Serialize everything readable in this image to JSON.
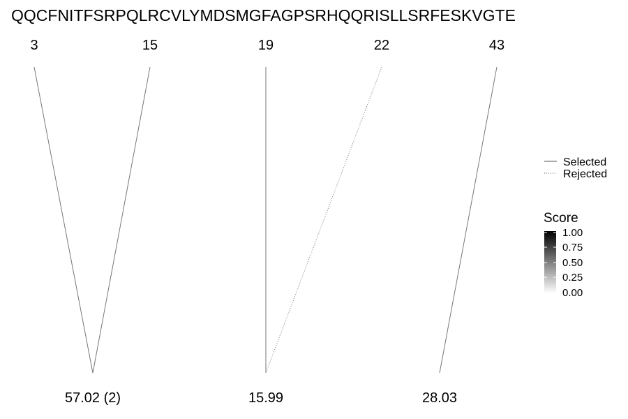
{
  "sequence": "QQCFNITFSRPQLRCVLYMDSMGFAGPSRHQQRISLLSRFESKVGTE",
  "links": [
    {
      "position": "3",
      "mass": "57.02 (2)",
      "status": "selected"
    },
    {
      "position": "15",
      "mass": "57.02 (2)",
      "status": "selected"
    },
    {
      "position": "19",
      "mass": "15.99",
      "status": "selected"
    },
    {
      "position": "22",
      "mass": "15.99",
      "status": "rejected"
    },
    {
      "position": "43",
      "mass": "28.03",
      "status": "selected"
    }
  ],
  "positions": [
    "3",
    "15",
    "19",
    "22",
    "43"
  ],
  "masses": [
    "57.02 (2)",
    "15.99",
    "28.03"
  ],
  "line_legend": {
    "items": [
      {
        "label": "Selected",
        "style": "solid"
      },
      {
        "label": "Rejected",
        "style": "dotted"
      }
    ]
  },
  "score_legend": {
    "title": "Score",
    "ticks": [
      "1.00",
      "0.75",
      "0.50",
      "0.25",
      "0.00"
    ],
    "color_high": "#000000",
    "color_low": "#ffffff"
  },
  "colors": {
    "line": "#777777"
  }
}
